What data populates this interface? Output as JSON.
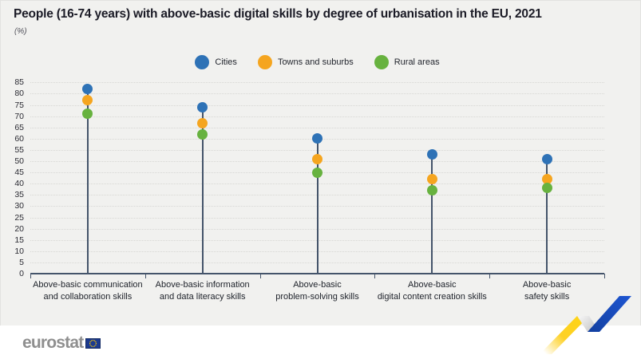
{
  "window": {
    "background": "#F1F1EF",
    "footer_background": "#FFFFFF"
  },
  "chart_data": {
    "type": "scatter",
    "variant": "lollipop-dot-plot",
    "title": "People (16-74 years) with above-basic digital skills by degree of urbanisation in the EU, 2021",
    "subtitle": "(%)",
    "categories": [
      "Above-basic communication and collaboration skills",
      "Above-basic information and data literacy skills",
      "Above-basic problem-solving skills",
      "Above-basic digital content creation skills",
      "Above-basic safety skills"
    ],
    "category_label_lines": [
      [
        "Above-basic communication",
        "and collaboration skills"
      ],
      [
        "Above-basic information",
        "and data literacy skills"
      ],
      [
        "Above-basic",
        "problem-solving skills"
      ],
      [
        "Above-basic",
        "digital content creation skills"
      ],
      [
        "Above-basic",
        "safety skills"
      ]
    ],
    "series": [
      {
        "name": "Cities",
        "color": "#2E72B6",
        "values": [
          82,
          74,
          60,
          53,
          51
        ]
      },
      {
        "name": "Towns and suburbs",
        "color": "#F5A51F",
        "values": [
          77,
          67,
          51,
          42,
          42
        ]
      },
      {
        "name": "Rural areas",
        "color": "#67B23F",
        "values": [
          71,
          62,
          45,
          37,
          38
        ]
      }
    ],
    "ylim": [
      0,
      85
    ],
    "ytick_step": 5,
    "grid": "horizontal dotted gridlines every 5, solid baseline at 0 with category bracket ticks",
    "legend_position": "top-center",
    "axis_color": "#44546A",
    "gridline_color": "#D7D7D4"
  },
  "footer": {
    "logo_text": "eurostat",
    "flag_icon": "eu-flag",
    "ribbon_colors": {
      "yellow": "#FDC900",
      "blue": "#1A4FC4",
      "fold": "#C9C9C9"
    }
  }
}
